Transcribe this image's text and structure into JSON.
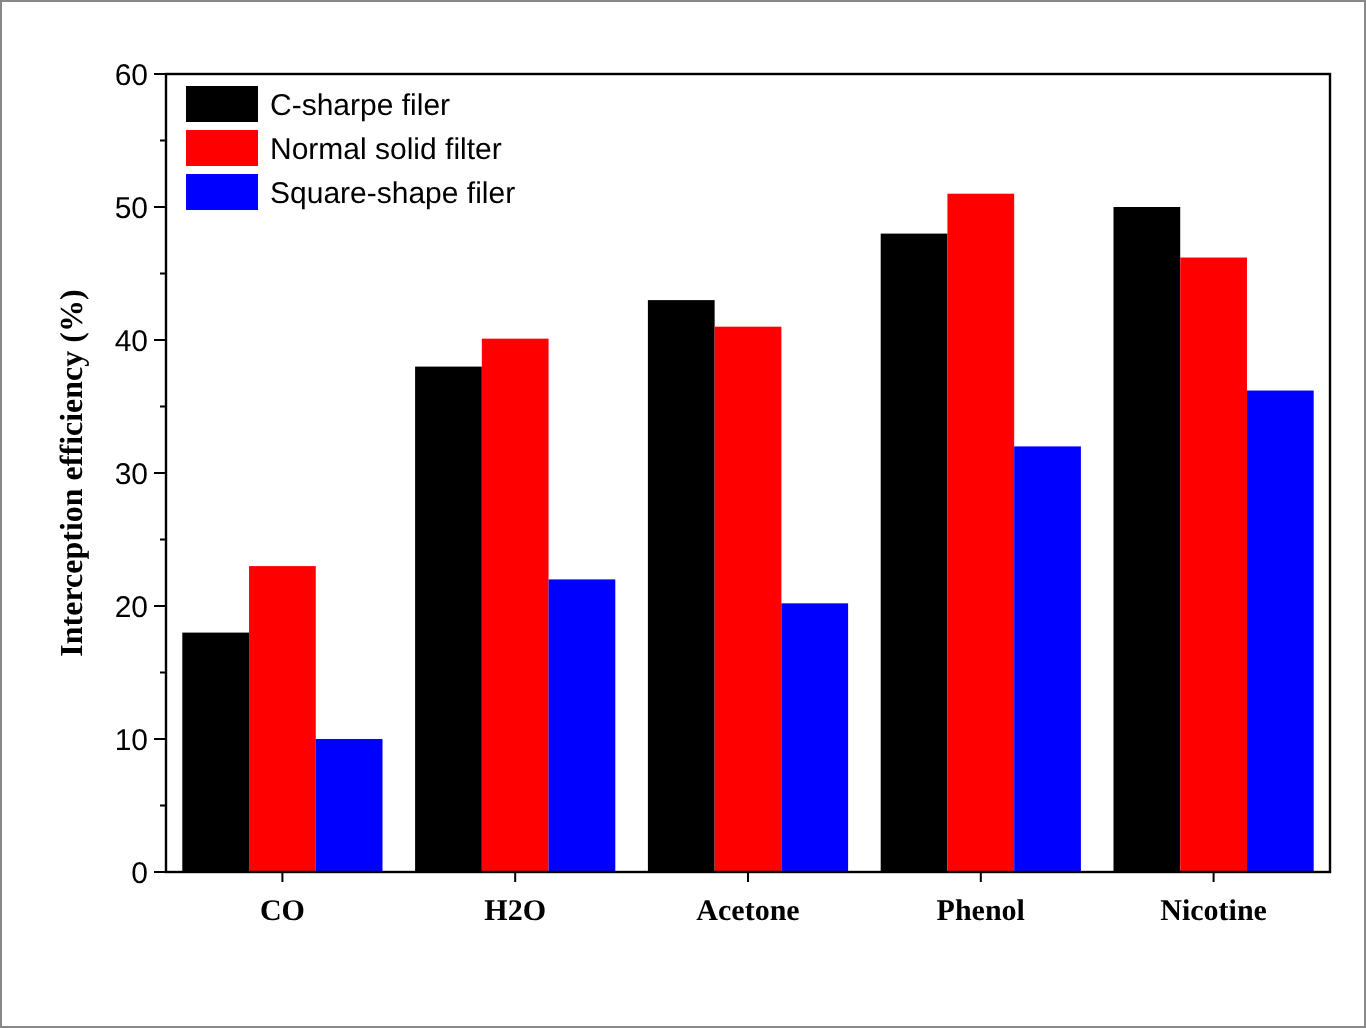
{
  "chart_data": {
    "type": "bar",
    "ylabel": "Interception efficiency  (%)",
    "categories": [
      "CO",
      "H2O",
      "Acetone",
      "Phenol",
      "Nicotine"
    ],
    "series": [
      {
        "name": "C-sharpe filer",
        "color": "#000000",
        "values": [
          18,
          38,
          43,
          48,
          50
        ]
      },
      {
        "name": "Normal solid filter",
        "color": "#ff0000",
        "values": [
          23,
          40.1,
          41,
          51,
          46.2
        ]
      },
      {
        "name": "Square-shape filer",
        "color": "#0000ff",
        "values": [
          10,
          22,
          20.2,
          32,
          36.2
        ]
      }
    ],
    "ylim": [
      0,
      60
    ],
    "yticks": [
      0,
      {
        "value": 5,
        "label": null
      },
      10,
      {
        "value": 15,
        "label": null
      },
      20,
      {
        "value": 25,
        "label": null
      },
      30,
      {
        "value": 35,
        "label": null
      },
      40,
      {
        "value": 45,
        "label": null
      },
      50,
      {
        "value": 55,
        "label": null
      },
      60
    ],
    "grid": false,
    "legend": "top left"
  }
}
